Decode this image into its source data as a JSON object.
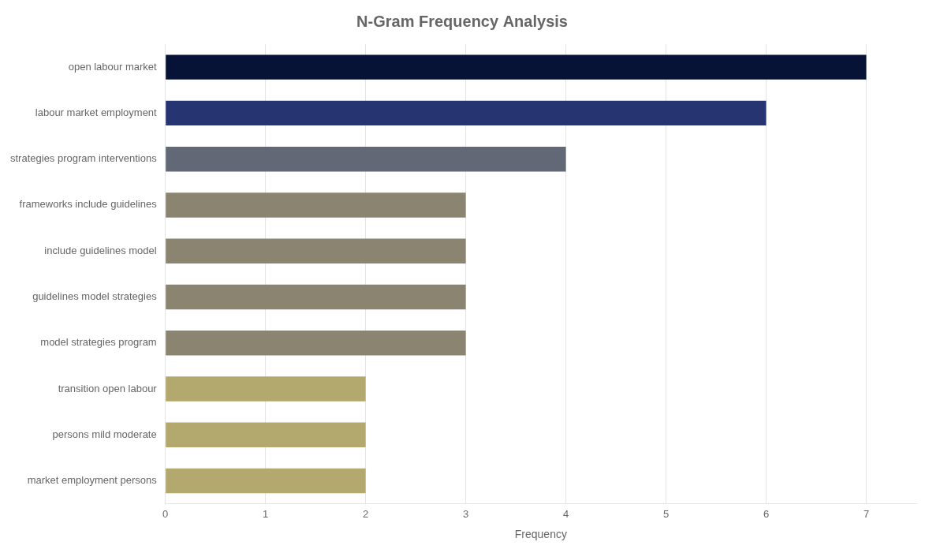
{
  "chart_data": {
    "type": "bar",
    "orientation": "horizontal",
    "title": "N-Gram Frequency Analysis",
    "categories": [
      "market employment persons",
      "persons mild moderate",
      "transition open labour",
      "model strategies program",
      "guidelines model strategies",
      "include guidelines model",
      "frameworks include guidelines",
      "strategies program interventions",
      "labour market employment",
      "open labour market"
    ],
    "values": [
      2,
      2,
      2,
      3,
      3,
      3,
      3,
      4,
      6,
      7
    ],
    "colors": [
      "#b3a96e",
      "#b3a96e",
      "#b3a96e",
      "#8a8470",
      "#8a8470",
      "#8a8470",
      "#8a8470",
      "#636877",
      "#273472",
      "#071336"
    ],
    "xlabel": "Frequency",
    "xlim": [
      0,
      7.5
    ],
    "xticks": [
      0,
      1,
      2,
      3,
      4,
      5,
      6,
      7
    ],
    "grid": true
  }
}
